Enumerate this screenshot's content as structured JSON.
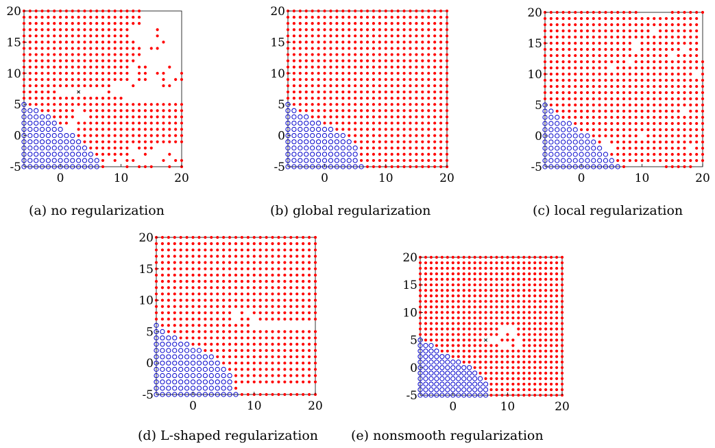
{
  "figure": {
    "captions": [
      "(a) no regularization",
      "(b) global regularization",
      "(c) local regularization",
      "(d) L-shaped regularization",
      "(e) nonsmooth regularization"
    ]
  },
  "colors": {
    "red": "#ff0000",
    "blue": "#0000cc",
    "axis": "#000000",
    "marker": "#000000"
  },
  "chart_data": [
    {
      "type": "scatter",
      "title": "",
      "xlabel": "",
      "ylabel": "",
      "xlim": [
        -6,
        20
      ],
      "ylim": [
        -5,
        20
      ],
      "xticks": [
        "0",
        "10",
        "20"
      ],
      "yticks": [
        "-5",
        "0",
        "5",
        "10",
        "15",
        "20"
      ],
      "grid": false,
      "boundary_col_height": {
        "-6": 5,
        "-5": 4,
        "-4": 4,
        "-3": 3,
        "-2": 3,
        "-1": 2,
        "0": 1,
        "1": 0,
        "2": 0,
        "3": -1,
        "4": -2,
        "5": -3,
        "6": -4
      },
      "missing_red": [
        [
          -3,
          0
        ],
        [
          -3,
          1
        ],
        [
          -3,
          2
        ],
        [
          1,
          1
        ],
        [
          2,
          1
        ],
        [
          2,
          2
        ],
        [
          3,
          3
        ],
        [
          3,
          4
        ],
        [
          4,
          3
        ],
        [
          8,
          -4
        ],
        [
          8,
          -5
        ],
        [
          9,
          -5
        ],
        [
          10,
          -4
        ],
        [
          10,
          -5
        ],
        [
          12,
          -5
        ],
        [
          13,
          -4
        ],
        [
          14,
          -4
        ],
        [
          15,
          -4
        ],
        [
          16,
          -4
        ],
        [
          17,
          -4
        ],
        [
          18,
          -4
        ],
        [
          19,
          -4
        ],
        [
          16,
          -2
        ],
        [
          17,
          -2
        ],
        [
          18,
          -2
        ],
        [
          19,
          -2
        ],
        [
          17,
          -3
        ],
        [
          18,
          -3
        ],
        [
          19,
          -3
        ],
        [
          20,
          -3
        ],
        [
          20,
          -4
        ],
        [
          20,
          -2
        ],
        [
          20,
          -5
        ],
        [
          16,
          -5
        ],
        [
          17,
          -5
        ],
        [
          19,
          -5
        ],
        [
          12,
          -2
        ],
        [
          12,
          -3
        ],
        [
          13,
          -3
        ],
        [
          15,
          -3
        ],
        [
          16,
          -3
        ],
        [
          13,
          6
        ],
        [
          14,
          6
        ],
        [
          15,
          6
        ],
        [
          16,
          6
        ],
        [
          17,
          6
        ],
        [
          18,
          6
        ],
        [
          19,
          6
        ],
        [
          20,
          6
        ],
        [
          5,
          7
        ],
        [
          6,
          7
        ],
        [
          7,
          7
        ],
        [
          9,
          7
        ],
        [
          10,
          7
        ],
        [
          11,
          7
        ],
        [
          12,
          7
        ],
        [
          13,
          7
        ],
        [
          14,
          7
        ],
        [
          15,
          7
        ],
        [
          16,
          7
        ],
        [
          17,
          7
        ],
        [
          18,
          7
        ],
        [
          19,
          7
        ],
        [
          20,
          7
        ],
        [
          2,
          7
        ],
        [
          3,
          7
        ],
        [
          4,
          7
        ],
        [
          1,
          7
        ],
        [
          0,
          7
        ],
        [
          9,
          8
        ],
        [
          10,
          8
        ],
        [
          11,
          8
        ],
        [
          12,
          8
        ],
        [
          13,
          8
        ],
        [
          14,
          8
        ],
        [
          15,
          8
        ],
        [
          16,
          8
        ],
        [
          17,
          8
        ],
        [
          18,
          8
        ],
        [
          19,
          8
        ],
        [
          20,
          8
        ],
        [
          12,
          9
        ],
        [
          13,
          9
        ],
        [
          14,
          9
        ],
        [
          15,
          9
        ],
        [
          16,
          9
        ],
        [
          17,
          9
        ],
        [
          18,
          9
        ],
        [
          19,
          9
        ],
        [
          20,
          9
        ],
        [
          15,
          10
        ],
        [
          15,
          11
        ],
        [
          16,
          12
        ],
        [
          17,
          12
        ],
        [
          18,
          12
        ],
        [
          16,
          11
        ],
        [
          17,
          11
        ],
        [
          18,
          11
        ],
        [
          19,
          11
        ],
        [
          20,
          11
        ],
        [
          20,
          12
        ],
        [
          19,
          12
        ],
        [
          20,
          10
        ],
        [
          19,
          10
        ],
        [
          18,
          10
        ],
        [
          15,
          12
        ],
        [
          14,
          12
        ],
        [
          13,
          12
        ],
        [
          14,
          13
        ],
        [
          15,
          13
        ],
        [
          16,
          13
        ],
        [
          17,
          13
        ],
        [
          18,
          13
        ],
        [
          19,
          13
        ],
        [
          20,
          13
        ],
        [
          14,
          14
        ],
        [
          15,
          14
        ],
        [
          16,
          14
        ],
        [
          17,
          14
        ],
        [
          18,
          14
        ],
        [
          19,
          14
        ],
        [
          20,
          14
        ],
        [
          13,
          15
        ],
        [
          14,
          15
        ],
        [
          15,
          15
        ],
        [
          16,
          15
        ],
        [
          17,
          15
        ],
        [
          18,
          15
        ],
        [
          19,
          15
        ],
        [
          20,
          15
        ],
        [
          12,
          16
        ],
        [
          13,
          16
        ],
        [
          14,
          16
        ],
        [
          15,
          16
        ],
        [
          16,
          16
        ],
        [
          17,
          16
        ],
        [
          18,
          16
        ],
        [
          19,
          16
        ],
        [
          20,
          16
        ],
        [
          12,
          17
        ],
        [
          13,
          17
        ],
        [
          14,
          17
        ],
        [
          15,
          17
        ],
        [
          16,
          17
        ],
        [
          17,
          17
        ],
        [
          18,
          17
        ],
        [
          19,
          17
        ],
        [
          20,
          17
        ],
        [
          14,
          18
        ],
        [
          15,
          18
        ],
        [
          16,
          18
        ],
        [
          17,
          18
        ],
        [
          18,
          18
        ],
        [
          19,
          18
        ],
        [
          20,
          18
        ],
        [
          14,
          19
        ],
        [
          15,
          19
        ],
        [
          16,
          19
        ],
        [
          17,
          19
        ],
        [
          18,
          19
        ],
        [
          19,
          19
        ],
        [
          20,
          19
        ],
        [
          14,
          20
        ],
        [
          15,
          20
        ],
        [
          16,
          20
        ],
        [
          17,
          20
        ],
        [
          18,
          20
        ],
        [
          19,
          20
        ],
        [
          20,
          20
        ],
        [
          11,
          6
        ],
        [
          12,
          6
        ],
        [
          12,
          10
        ],
        [
          12,
          11
        ]
      ],
      "extra_red": [
        [
          17,
          15
        ],
        [
          16,
          17
        ],
        [
          16,
          14
        ],
        [
          16,
          16
        ],
        [
          15,
          14
        ],
        [
          18,
          11
        ],
        [
          19,
          9
        ],
        [
          20,
          9
        ],
        [
          20,
          10
        ],
        [
          13,
          10
        ],
        [
          14,
          10
        ],
        [
          13,
          9
        ],
        [
          14,
          9
        ],
        [
          17,
          10
        ],
        [
          17,
          9
        ],
        [
          17,
          8
        ],
        [
          18,
          8
        ],
        [
          16,
          10
        ],
        [
          12,
          8
        ],
        [
          13,
          11
        ],
        [
          19,
          -4
        ],
        [
          20,
          -4
        ],
        [
          17,
          -4
        ],
        [
          18,
          -3
        ],
        [
          20,
          -5
        ],
        [
          14,
          -2
        ],
        [
          14,
          -1
        ],
        [
          13,
          -2
        ]
      ],
      "cross_markers": [
        [
          3,
          7
        ]
      ]
    },
    {
      "type": "scatter",
      "title": "",
      "xlabel": "",
      "ylabel": "",
      "xlim": [
        -6,
        20
      ],
      "ylim": [
        -5,
        20
      ],
      "xticks": [
        "0",
        "10",
        "20"
      ],
      "yticks": [
        "-5",
        "0",
        "5",
        "10",
        "15",
        "20"
      ],
      "grid": false,
      "boundary_col_height": {
        "-6": 5,
        "-5": 4,
        "-4": 3,
        "-3": 3,
        "-2": 2,
        "-1": 2,
        "0": 1,
        "1": 1,
        "2": 0,
        "3": 0,
        "4": -1,
        "5": -2,
        "6": -5
      },
      "missing_red": [],
      "extra_red": [],
      "cross_markers": []
    },
    {
      "type": "scatter",
      "title": "",
      "xlabel": "",
      "ylabel": "",
      "xlim": [
        -6,
        20
      ],
      "ylim": [
        -5,
        20
      ],
      "xticks": [
        "0",
        "10",
        "20"
      ],
      "yticks": [
        "-5",
        "0",
        "5",
        "10",
        "15",
        "20"
      ],
      "grid": false,
      "boundary_col_height": {
        "-6": 5,
        "-5": 4,
        "-4": 3,
        "-3": 2,
        "-2": 2,
        "-1": 1,
        "0": 0,
        "1": 0,
        "2": -1,
        "3": -2,
        "4": -3,
        "5": -4,
        "6": -5
      },
      "missing_red": [
        [
          4,
          -1
        ],
        [
          5,
          -2
        ],
        [
          4,
          -2
        ],
        [
          8,
          -5
        ],
        [
          9,
          -5
        ],
        [
          10,
          -5
        ],
        [
          11,
          -5
        ],
        [
          12,
          -5
        ],
        [
          13,
          -5
        ],
        [
          19,
          -5
        ],
        [
          20,
          -5
        ],
        [
          10,
          20
        ],
        [
          11,
          20
        ],
        [
          12,
          20
        ],
        [
          13,
          20
        ],
        [
          14,
          20
        ],
        [
          20,
          19
        ],
        [
          20,
          18
        ],
        [
          20,
          17
        ],
        [
          20,
          16
        ],
        [
          20,
          15
        ],
        [
          20,
          14
        ],
        [
          20,
          13
        ],
        [
          12,
          17
        ],
        [
          17,
          14
        ],
        [
          9,
          14
        ],
        [
          15,
          13
        ],
        [
          8,
          12
        ],
        [
          5,
          11
        ],
        [
          17,
          4
        ],
        [
          19,
          10
        ],
        [
          18,
          -2
        ],
        [
          10,
          0
        ],
        [
          9,
          15
        ]
      ],
      "extra_red": [],
      "cross_markers": []
    },
    {
      "type": "scatter",
      "title": "",
      "xlabel": "",
      "ylabel": "",
      "xlim": [
        -6,
        20
      ],
      "ylim": [
        -5,
        20
      ],
      "xticks": [
        "0",
        "10",
        "20"
      ],
      "yticks": [
        "-5",
        "0",
        "5",
        "10",
        "15",
        "20"
      ],
      "grid": false,
      "boundary_col_height": {
        "-6": 6,
        "-5": 5,
        "-4": 4,
        "-3": 4,
        "-2": 3,
        "-1": 3,
        "0": 2,
        "1": 2,
        "2": 1,
        "3": 1,
        "4": 0,
        "5": -1,
        "6": -2,
        "7": -5
      },
      "missing_red": [
        [
          8,
          -4
        ],
        [
          9,
          -4
        ],
        [
          10,
          -4
        ],
        [
          11,
          -4
        ],
        [
          12,
          -4
        ],
        [
          13,
          -4
        ],
        [
          14,
          -4
        ],
        [
          15,
          -4
        ],
        [
          16,
          -4
        ],
        [
          17,
          -4
        ],
        [
          18,
          -4
        ],
        [
          19,
          -4
        ],
        [
          20,
          -4
        ],
        [
          11,
          6
        ],
        [
          12,
          6
        ],
        [
          13,
          6
        ],
        [
          14,
          6
        ],
        [
          15,
          6
        ],
        [
          16,
          6
        ],
        [
          17,
          6
        ],
        [
          18,
          6
        ],
        [
          19,
          6
        ],
        [
          20,
          6
        ],
        [
          7,
          7
        ],
        [
          9,
          8
        ],
        [
          10,
          7
        ],
        [
          10,
          6
        ],
        [
          7,
          8
        ]
      ],
      "extra_red": [],
      "cross_markers": []
    },
    {
      "type": "scatter",
      "title": "",
      "xlabel": "",
      "ylabel": "",
      "xlim": [
        -6,
        20
      ],
      "ylim": [
        -5,
        20
      ],
      "xticks": [
        "0",
        "10",
        "20"
      ],
      "yticks": [
        "-5",
        "0",
        "5",
        "10",
        "15",
        "20"
      ],
      "grid": false,
      "boundary_col_height": {
        "-6": 5,
        "-5": 4,
        "-4": 4,
        "-3": 3,
        "-2": 2,
        "-1": 2,
        "0": 1,
        "1": 1,
        "2": 0,
        "3": 0,
        "4": -1,
        "5": -2,
        "6": -3
      },
      "missing_red": [
        [
          8,
          6
        ],
        [
          9,
          6
        ],
        [
          10,
          6
        ],
        [
          11,
          6
        ],
        [
          10,
          5
        ],
        [
          11,
          5
        ],
        [
          12,
          5
        ],
        [
          9,
          7
        ],
        [
          10,
          7
        ],
        [
          11,
          7
        ],
        [
          6,
          5
        ],
        [
          7,
          5
        ],
        [
          8,
          5
        ],
        [
          9,
          5
        ],
        [
          8,
          4
        ],
        [
          9,
          4
        ],
        [
          10,
          4
        ],
        [
          11,
          4
        ],
        [
          12,
          4
        ]
      ],
      "extra_red": [
        [
          8,
          6
        ],
        [
          10,
          6
        ],
        [
          10,
          5
        ],
        [
          9,
          5
        ],
        [
          11,
          5
        ],
        [
          8,
          4
        ],
        [
          11,
          4
        ]
      ],
      "cross_markers": [
        [
          6,
          5
        ]
      ]
    }
  ]
}
